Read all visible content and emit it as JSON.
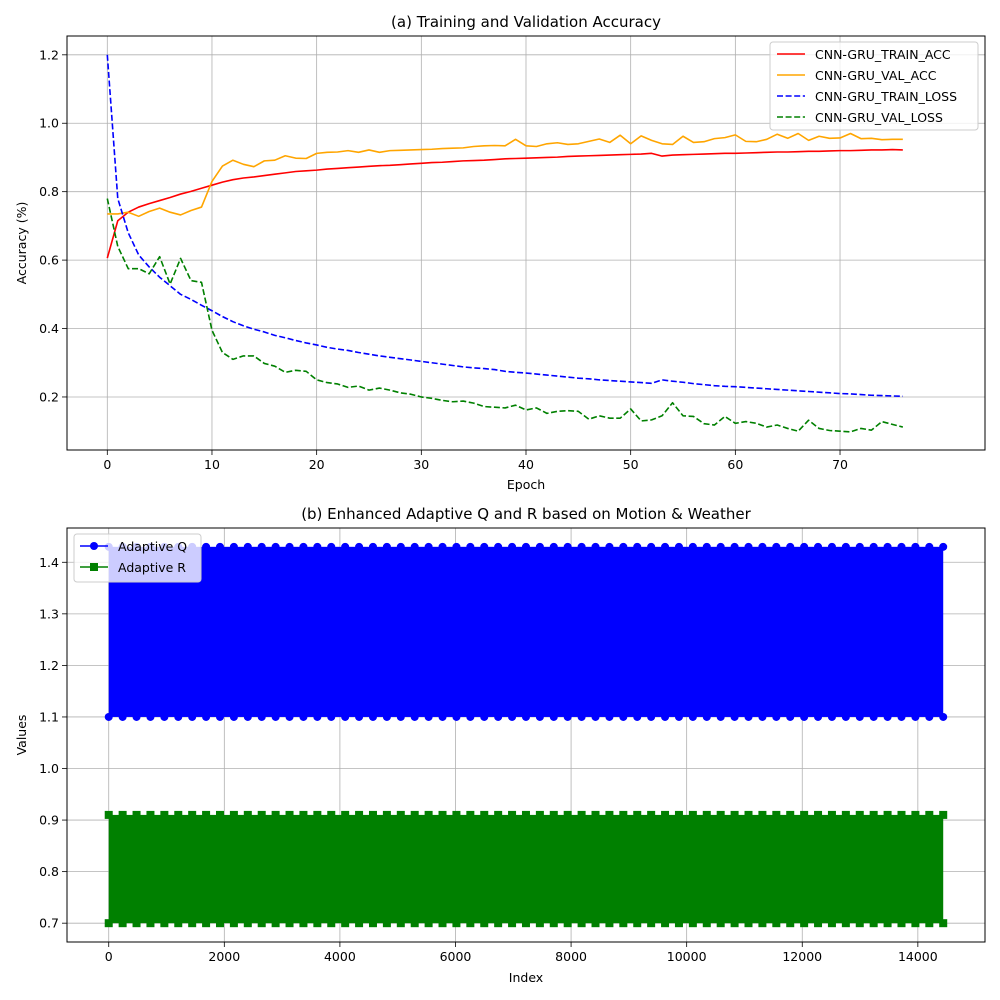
{
  "chart_data": [
    {
      "type": "line",
      "title": "(a) Training and Validation Accuracy",
      "xlabel": "Epoch",
      "ylabel": "Accuracy (%)",
      "xlim": [
        -3.85,
        83.85
      ],
      "ylim": [
        0.045,
        1.255
      ],
      "xticks": [
        0,
        10,
        20,
        30,
        40,
        50,
        60,
        70
      ],
      "yticks": [
        0.2,
        0.4,
        0.6,
        0.8,
        1.0,
        1.2
      ],
      "ytick_labels": [
        "0.2",
        "0.4",
        "0.6",
        "0.8",
        "1.0",
        "1.2"
      ],
      "grid": true,
      "legend_position": "top-right",
      "series": [
        {
          "name": "CNN-GRU_TRAIN_ACC",
          "color": "#ff0000",
          "dash": "solid",
          "values": [
            0.606,
            0.715,
            0.74,
            0.755,
            0.765,
            0.774,
            0.783,
            0.793,
            0.801,
            0.81,
            0.819,
            0.828,
            0.835,
            0.84,
            0.843,
            0.847,
            0.851,
            0.855,
            0.859,
            0.861,
            0.863,
            0.866,
            0.868,
            0.87,
            0.872,
            0.874,
            0.876,
            0.877,
            0.879,
            0.881,
            0.883,
            0.885,
            0.886,
            0.888,
            0.89,
            0.891,
            0.892,
            0.894,
            0.896,
            0.897,
            0.898,
            0.899,
            0.9,
            0.901,
            0.903,
            0.904,
            0.905,
            0.906,
            0.907,
            0.908,
            0.909,
            0.91,
            0.912,
            0.904,
            0.907,
            0.908,
            0.909,
            0.91,
            0.911,
            0.912,
            0.912,
            0.913,
            0.914,
            0.915,
            0.916,
            0.916,
            0.917,
            0.918,
            0.918,
            0.919,
            0.92,
            0.92,
            0.921,
            0.922,
            0.922,
            0.923,
            0.922
          ]
        },
        {
          "name": "CNN-GRU_VAL_ACC",
          "color": "#ffa500",
          "dash": "solid",
          "values": [
            0.735,
            0.735,
            0.74,
            0.728,
            0.742,
            0.752,
            0.74,
            0.732,
            0.745,
            0.755,
            0.83,
            0.875,
            0.892,
            0.88,
            0.873,
            0.89,
            0.892,
            0.905,
            0.898,
            0.897,
            0.912,
            0.915,
            0.916,
            0.92,
            0.915,
            0.922,
            0.915,
            0.92,
            0.921,
            0.922,
            0.923,
            0.924,
            0.926,
            0.927,
            0.928,
            0.932,
            0.934,
            0.935,
            0.934,
            0.953,
            0.934,
            0.932,
            0.94,
            0.943,
            0.938,
            0.94,
            0.947,
            0.954,
            0.944,
            0.965,
            0.94,
            0.963,
            0.95,
            0.94,
            0.938,
            0.962,
            0.944,
            0.946,
            0.955,
            0.958,
            0.966,
            0.947,
            0.946,
            0.953,
            0.968,
            0.956,
            0.97,
            0.95,
            0.962,
            0.956,
            0.957,
            0.97,
            0.955,
            0.956,
            0.952,
            0.953,
            0.953
          ]
        },
        {
          "name": "CNN-GRU_TRAIN_LOSS",
          "color": "#0000ff",
          "dash": "dashed",
          "values": [
            1.2,
            0.78,
            0.68,
            0.615,
            0.58,
            0.55,
            0.525,
            0.5,
            0.485,
            0.468,
            0.452,
            0.435,
            0.42,
            0.408,
            0.398,
            0.39,
            0.38,
            0.373,
            0.365,
            0.358,
            0.352,
            0.345,
            0.34,
            0.336,
            0.33,
            0.325,
            0.32,
            0.316,
            0.312,
            0.308,
            0.304,
            0.3,
            0.296,
            0.292,
            0.288,
            0.285,
            0.283,
            0.28,
            0.275,
            0.272,
            0.27,
            0.267,
            0.264,
            0.261,
            0.258,
            0.255,
            0.253,
            0.25,
            0.248,
            0.246,
            0.244,
            0.242,
            0.24,
            0.25,
            0.246,
            0.243,
            0.239,
            0.236,
            0.233,
            0.231,
            0.23,
            0.228,
            0.226,
            0.224,
            0.222,
            0.22,
            0.218,
            0.216,
            0.214,
            0.212,
            0.21,
            0.209,
            0.207,
            0.205,
            0.204,
            0.203,
            0.202
          ]
        },
        {
          "name": "CNN-GRU_VAL_LOSS",
          "color": "#008000",
          "dash": "dashed",
          "values": [
            0.78,
            0.64,
            0.575,
            0.575,
            0.56,
            0.61,
            0.53,
            0.605,
            0.54,
            0.535,
            0.395,
            0.33,
            0.31,
            0.32,
            0.32,
            0.298,
            0.29,
            0.272,
            0.278,
            0.275,
            0.25,
            0.242,
            0.238,
            0.228,
            0.232,
            0.22,
            0.226,
            0.22,
            0.212,
            0.208,
            0.2,
            0.196,
            0.19,
            0.186,
            0.188,
            0.182,
            0.172,
            0.17,
            0.168,
            0.176,
            0.162,
            0.168,
            0.152,
            0.158,
            0.16,
            0.158,
            0.135,
            0.145,
            0.138,
            0.138,
            0.165,
            0.13,
            0.133,
            0.145,
            0.183,
            0.145,
            0.143,
            0.122,
            0.118,
            0.143,
            0.123,
            0.128,
            0.123,
            0.112,
            0.118,
            0.108,
            0.1,
            0.132,
            0.108,
            0.102,
            0.1,
            0.098,
            0.108,
            0.103,
            0.128,
            0.12,
            0.112
          ]
        }
      ]
    },
    {
      "type": "line",
      "title": "(b) Enhanced Adaptive Q and R based on Motion & Weather",
      "xlabel": "Index",
      "ylabel": "Values",
      "xlim": [
        -722,
        15162
      ],
      "ylim": [
        0.6635,
        1.4665
      ],
      "xticks": [
        0,
        2000,
        4000,
        6000,
        8000,
        10000,
        12000,
        14000
      ],
      "yticks": [
        0.7,
        0.8,
        0.9,
        1.0,
        1.1,
        1.2,
        1.3,
        1.4
      ],
      "ytick_labels": [
        "0.7",
        "0.8",
        "0.9",
        "1.0",
        "1.1",
        "1.2",
        "1.3",
        "1.4"
      ],
      "grid": true,
      "legend_position": "top-left",
      "x_range": [
        0,
        14439
      ],
      "series": [
        {
          "name": "Adaptive Q",
          "color": "#0000ff",
          "marker": "circle",
          "value_range": [
            1.1,
            1.43
          ]
        },
        {
          "name": "Adaptive R",
          "color": "#008000",
          "marker": "square",
          "value_range": [
            0.7,
            0.91
          ]
        }
      ]
    }
  ]
}
